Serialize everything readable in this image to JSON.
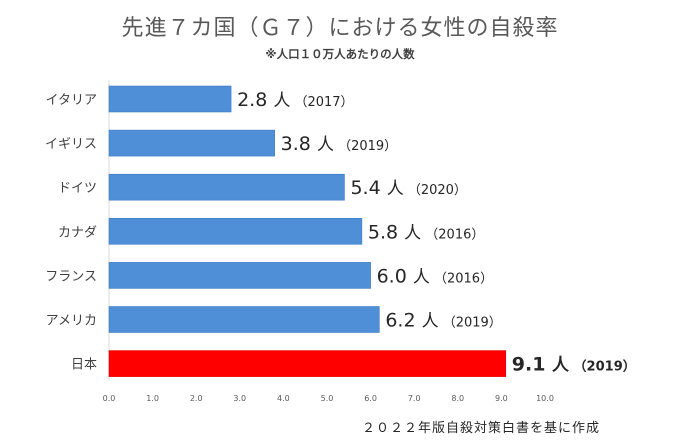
{
  "chart_data": {
    "type": "bar",
    "orientation": "horizontal",
    "title": "先進７カ国（Ｇ７）における女性の自殺率",
    "subtitle": "※人口１０万人あたりの人数",
    "source_note": "２０２２年版自殺対策白書を基に作成",
    "categories": [
      "イタリア",
      "イギリス",
      "ドイツ",
      "カナダ",
      "フランス",
      "アメリカ",
      "日本"
    ],
    "values": [
      2.8,
      3.8,
      5.4,
      5.8,
      6.0,
      6.2,
      9.1
    ],
    "value_labels": [
      "2.8",
      "3.8",
      "5.4",
      "5.8",
      "6.0",
      "6.2",
      "9.1"
    ],
    "unit": "人",
    "years": [
      "（2017）",
      "（2019）",
      "（2020）",
      "（2016）",
      "（2016）",
      "（2019）",
      "（2019）"
    ],
    "highlight": [
      false,
      false,
      false,
      false,
      false,
      false,
      true
    ],
    "xlim": [
      0,
      10
    ],
    "xticks": [
      "0.0",
      "1.0",
      "2.0",
      "3.0",
      "4.0",
      "5.0",
      "6.0",
      "7.0",
      "8.0",
      "9.0",
      "10.0"
    ],
    "grid": false,
    "legend": "none",
    "colors": {
      "bar": "#4f8fd8",
      "bar_highlight": "#ff0000",
      "text": "#262626",
      "label": "#404040"
    }
  }
}
